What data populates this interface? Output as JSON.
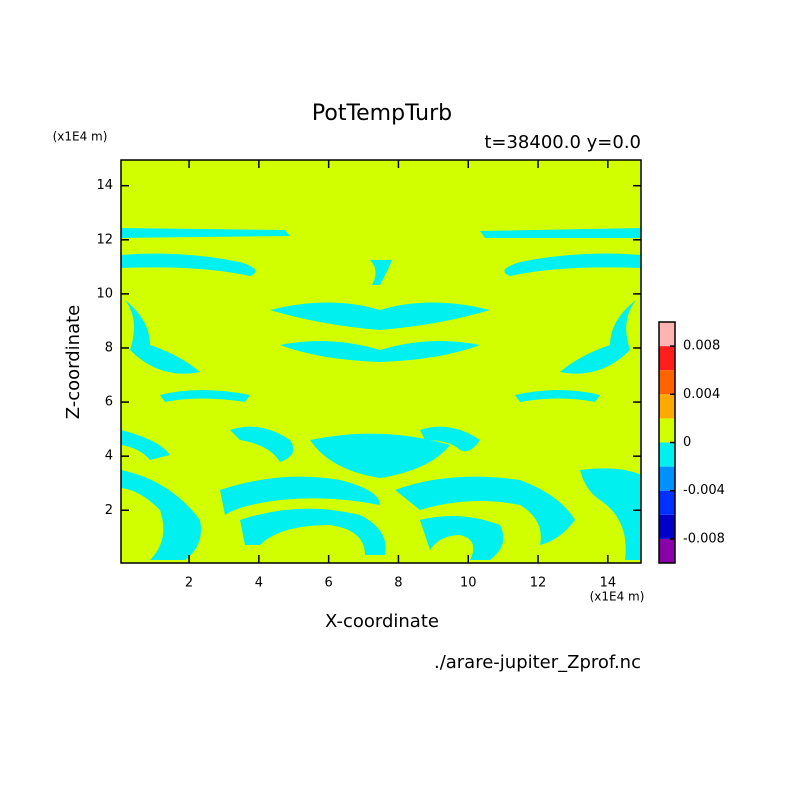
{
  "chart_data": {
    "type": "contour",
    "title": "PotTempTurb",
    "subtitle": "t=38400.0 y=0.0",
    "x_label": "X-coordinate",
    "y_label": "Z-coordinate",
    "x_unit": "(x1E4 m)",
    "y_unit": "(x1E4 m)",
    "file_label": "./arare-jupiter_Zprof.nc",
    "xlim": [
      0.05,
      14.95
    ],
    "ylim": [
      0.05,
      14.95
    ],
    "xticks": [
      2,
      4,
      6,
      8,
      10,
      12,
      14
    ],
    "yticks": [
      2,
      4,
      6,
      8,
      10,
      12,
      14
    ],
    "colorbar": {
      "levels": [
        -0.01,
        -0.008,
        -0.006,
        -0.004,
        -0.002,
        0,
        0.002,
        0.004,
        0.006,
        0.008,
        0.01
      ],
      "colors": [
        "#8a00a8",
        "#0000c8",
        "#0030ff",
        "#0090ff",
        "#00f0f0",
        "#d2ff00",
        "#ffa800",
        "#ff6400",
        "#ff1e1e",
        "#ffb4b4"
      ],
      "ticks": [
        0.008,
        0.004,
        0,
        -0.004,
        -0.008
      ]
    }
  }
}
